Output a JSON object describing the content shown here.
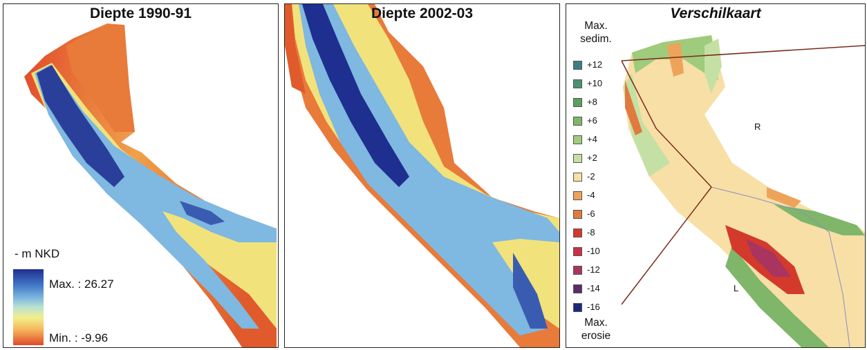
{
  "panels": {
    "depth_1990": {
      "title": "Diepte 1990-91",
      "legend": {
        "title": "- m NKD",
        "max_label": "Max. : 26.27",
        "min_label": "Min. : -9.96"
      }
    },
    "depth_2002": {
      "title": "Diepte 2002-03"
    },
    "difference": {
      "title": "Verschilkaart",
      "legend_top": "Max. sedim.",
      "legend_top_lines": [
        "Max.",
        "sedim."
      ],
      "legend_bottom_lines": [
        "Max.",
        "erosie"
      ],
      "classes": [
        {
          "label": "+12",
          "color": "#3d7f86"
        },
        {
          "label": "+10",
          "color": "#4b9272"
        },
        {
          "label": "+8",
          "color": "#5aa05e"
        },
        {
          "label": "+6",
          "color": "#7fb66a"
        },
        {
          "label": "+4",
          "color": "#9fcb7c"
        },
        {
          "label": "+2",
          "color": "#c5e0a4"
        },
        {
          "label": "-2",
          "color": "#f7dfa6"
        },
        {
          "label": "-4",
          "color": "#eda45a"
        },
        {
          "label": "-6",
          "color": "#e07a3e"
        },
        {
          "label": "-8",
          "color": "#d33a2c"
        },
        {
          "label": "-10",
          "color": "#c83148"
        },
        {
          "label": "-12",
          "color": "#a93460"
        },
        {
          "label": "-14",
          "color": "#5a2c6a"
        },
        {
          "label": "-16",
          "color": "#1b2a78"
        }
      ],
      "map_labels": {
        "right_bank": "R",
        "left_bank": "L"
      }
    }
  }
}
